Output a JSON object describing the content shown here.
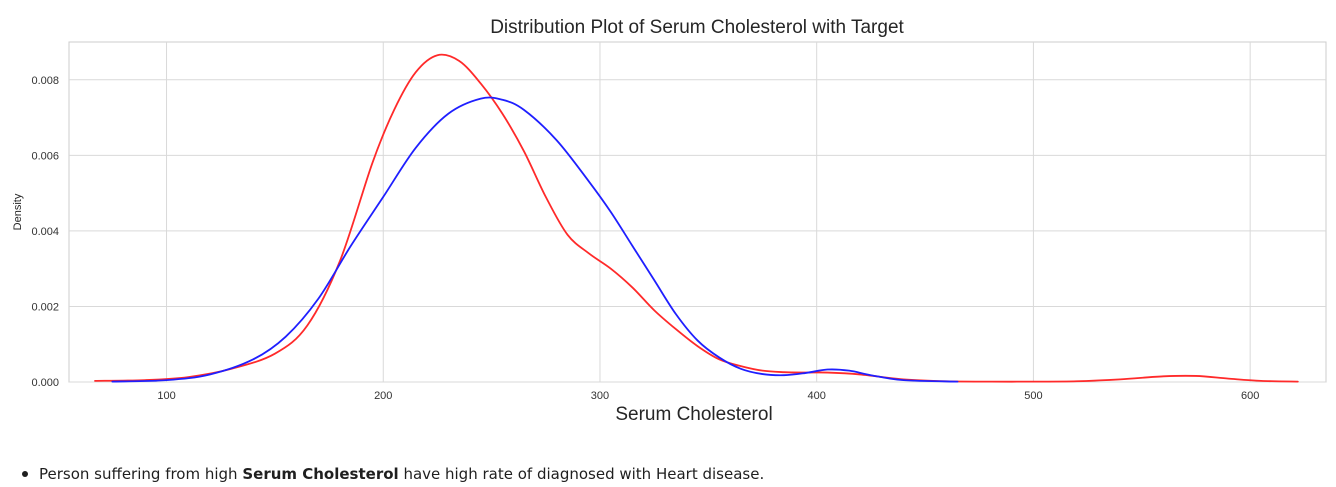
{
  "chart_data": {
    "type": "line",
    "title": "Distribution Plot of Serum Cholesterol with Target",
    "xlabel": "Serum Cholesterol",
    "ylabel": "Density",
    "xlim": [
      55,
      635
    ],
    "ylim": [
      0,
      0.009
    ],
    "xticks": [
      100,
      200,
      300,
      400,
      500,
      600
    ],
    "yticks": [
      0.0,
      0.002,
      0.004,
      0.006,
      0.008
    ],
    "xtick_labels": [
      "100",
      "200",
      "300",
      "400",
      "500",
      "600"
    ],
    "ytick_labels": [
      "0.000",
      "0.002",
      "0.004",
      "0.006",
      "0.008"
    ],
    "grid": true,
    "series": [
      {
        "color": "#ff2a2a",
        "x": [
          67,
          90,
          110,
          130,
          150,
          165,
          180,
          195,
          205,
          215,
          225,
          235,
          245,
          255,
          265,
          275,
          285,
          295,
          305,
          315,
          325,
          335,
          345,
          355,
          365,
          375,
          385,
          395,
          405,
          420,
          440,
          460,
          480,
          500,
          520,
          540,
          560,
          575,
          590,
          605,
          622
        ],
        "y": [
          3e-05,
          5e-05,
          0.00013,
          0.00035,
          0.00075,
          0.0015,
          0.0032,
          0.0058,
          0.0072,
          0.0082,
          0.00865,
          0.0085,
          0.0079,
          0.0071,
          0.0061,
          0.0049,
          0.0039,
          0.0034,
          0.003,
          0.0025,
          0.0019,
          0.0014,
          0.00095,
          0.0006,
          0.00042,
          0.0003,
          0.00026,
          0.00025,
          0.00025,
          0.0002,
          7e-05,
          2e-05,
          1e-05,
          1e-05,
          2e-05,
          7e-05,
          0.00015,
          0.00016,
          9e-05,
          3e-05,
          1e-05
        ]
      },
      {
        "color": "#1f1fff",
        "x": [
          75,
          100,
          120,
          140,
          155,
          170,
          185,
          200,
          215,
          230,
          245,
          255,
          265,
          280,
          295,
          305,
          315,
          325,
          335,
          345,
          355,
          365,
          375,
          385,
          395,
          405,
          415,
          425,
          440,
          465
        ],
        "y": [
          1e-05,
          5e-05,
          0.0002,
          0.0006,
          0.0012,
          0.0022,
          0.0036,
          0.0049,
          0.0062,
          0.0071,
          0.0075,
          0.00747,
          0.0072,
          0.0064,
          0.0053,
          0.0045,
          0.0036,
          0.0027,
          0.0018,
          0.0011,
          0.00065,
          0.00035,
          0.00021,
          0.00018,
          0.00024,
          0.00033,
          0.0003,
          0.00018,
          5e-05,
          1e-05
        ]
      }
    ]
  },
  "note": {
    "prefix": "Person suffering from high ",
    "bold": "Serum Cholesterol",
    "suffix": " have high rate of diagnosed with Heart disease."
  }
}
